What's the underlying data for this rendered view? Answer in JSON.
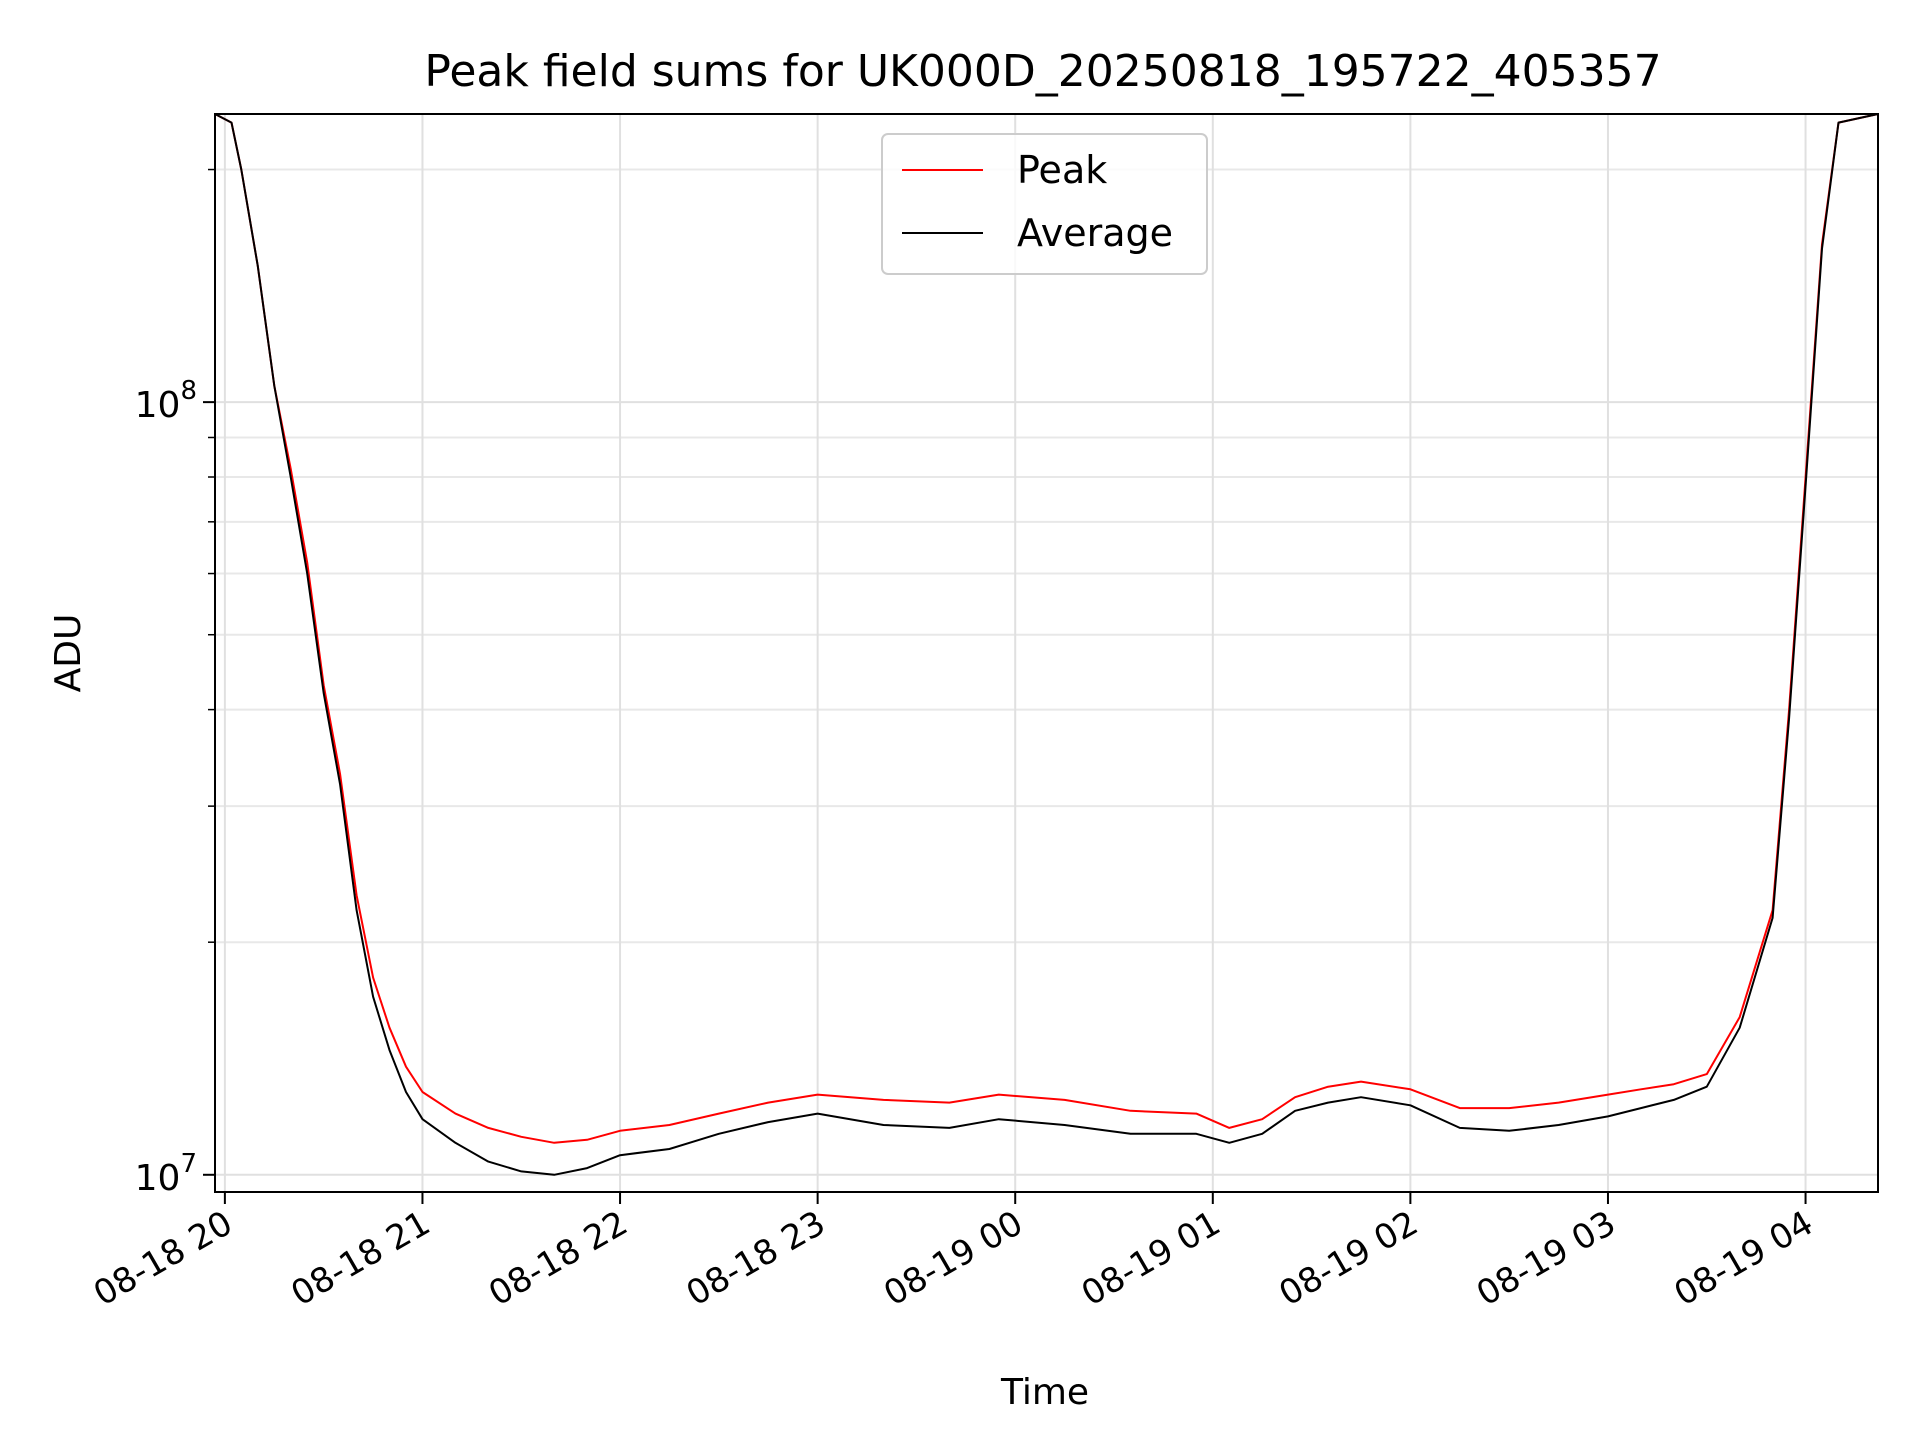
{
  "chart_data": {
    "type": "line",
    "title": "Peak field sums for UK000D_20250818_195722_405357",
    "xlabel": "Time",
    "ylabel": "ADU",
    "y_scale": "log",
    "ylim": [
      9500000,
      236000000
    ],
    "xlim": [
      "2025-08-18 19:57",
      "2025-08-19 04:22"
    ],
    "grid": true,
    "legend": {
      "placement": "top-center",
      "entries": [
        "Peak",
        "Average"
      ]
    },
    "x_ticks": [
      "08-18 20",
      "08-18 21",
      "08-18 22",
      "08-18 23",
      "08-19 00",
      "08-19 01",
      "08-19 02",
      "08-19 03",
      "08-19 04"
    ],
    "x_tick_times": [
      "2025-08-18 20:00",
      "2025-08-18 21:00",
      "2025-08-18 22:00",
      "2025-08-18 23:00",
      "2025-08-19 00:00",
      "2025-08-19 01:00",
      "2025-08-19 02:00",
      "2025-08-19 03:00",
      "2025-08-19 04:00"
    ],
    "y_ticks": [
      {
        "value": 10000000,
        "base": "10",
        "exp": "7"
      },
      {
        "value": 100000000,
        "base": "10",
        "exp": "8"
      }
    ],
    "series": [
      {
        "name": "Peak",
        "color": "#ff0000",
        "x": [
          "2025-08-18 19:57",
          "2025-08-18 20:02",
          "2025-08-18 20:05",
          "2025-08-18 20:10",
          "2025-08-18 20:15",
          "2025-08-18 20:20",
          "2025-08-18 20:25",
          "2025-08-18 20:30",
          "2025-08-18 20:35",
          "2025-08-18 20:40",
          "2025-08-18 20:45",
          "2025-08-18 20:50",
          "2025-08-18 20:55",
          "2025-08-18 21:00",
          "2025-08-18 21:10",
          "2025-08-18 21:20",
          "2025-08-18 21:30",
          "2025-08-18 21:40",
          "2025-08-18 21:50",
          "2025-08-18 22:00",
          "2025-08-18 22:15",
          "2025-08-18 22:30",
          "2025-08-18 22:45",
          "2025-08-18 23:00",
          "2025-08-18 23:20",
          "2025-08-18 23:40",
          "2025-08-18 23:55",
          "2025-08-19 00:15",
          "2025-08-19 00:35",
          "2025-08-19 00:55",
          "2025-08-19 01:05",
          "2025-08-19 01:15",
          "2025-08-19 01:25",
          "2025-08-19 01:35",
          "2025-08-19 01:45",
          "2025-08-19 02:00",
          "2025-08-19 02:15",
          "2025-08-19 02:30",
          "2025-08-19 02:45",
          "2025-08-19 03:00",
          "2025-08-19 03:10",
          "2025-08-19 03:20",
          "2025-08-19 03:30",
          "2025-08-19 03:40",
          "2025-08-19 03:50",
          "2025-08-19 03:55",
          "2025-08-19 04:00",
          "2025-08-19 04:05",
          "2025-08-19 04:10",
          "2025-08-19 04:22"
        ],
        "values": [
          236000000,
          230000000,
          200000000,
          150000000,
          105000000,
          82000000,
          62000000,
          43000000,
          33000000,
          23000000,
          18000000,
          15500000,
          13800000,
          12800000,
          12000000,
          11500000,
          11200000,
          11000000,
          11100000,
          11400000,
          11600000,
          12000000,
          12400000,
          12700000,
          12500000,
          12400000,
          12700000,
          12500000,
          12100000,
          12000000,
          11500000,
          11800000,
          12600000,
          13000000,
          13200000,
          12900000,
          12200000,
          12200000,
          12400000,
          12700000,
          12900000,
          13100000,
          13500000,
          16000000,
          22000000,
          40000000,
          80000000,
          160000000,
          230000000,
          236000000
        ]
      },
      {
        "name": "Average",
        "color": "#000000",
        "x": [
          "2025-08-18 19:57",
          "2025-08-18 20:02",
          "2025-08-18 20:05",
          "2025-08-18 20:10",
          "2025-08-18 20:15",
          "2025-08-18 20:20",
          "2025-08-18 20:25",
          "2025-08-18 20:30",
          "2025-08-18 20:35",
          "2025-08-18 20:40",
          "2025-08-18 20:45",
          "2025-08-18 20:50",
          "2025-08-18 20:55",
          "2025-08-18 21:00",
          "2025-08-18 21:10",
          "2025-08-18 21:20",
          "2025-08-18 21:30",
          "2025-08-18 21:40",
          "2025-08-18 21:50",
          "2025-08-18 22:00",
          "2025-08-18 22:15",
          "2025-08-18 22:30",
          "2025-08-18 22:45",
          "2025-08-18 23:00",
          "2025-08-18 23:20",
          "2025-08-18 23:40",
          "2025-08-18 23:55",
          "2025-08-19 00:15",
          "2025-08-19 00:35",
          "2025-08-19 00:55",
          "2025-08-19 01:05",
          "2025-08-19 01:15",
          "2025-08-19 01:25",
          "2025-08-19 01:35",
          "2025-08-19 01:45",
          "2025-08-19 02:00",
          "2025-08-19 02:15",
          "2025-08-19 02:30",
          "2025-08-19 02:45",
          "2025-08-19 03:00",
          "2025-08-19 03:10",
          "2025-08-19 03:20",
          "2025-08-19 03:30",
          "2025-08-19 03:40",
          "2025-08-19 03:50",
          "2025-08-19 03:55",
          "2025-08-19 04:00",
          "2025-08-19 04:05",
          "2025-08-19 04:10",
          "2025-08-19 04:22"
        ],
        "values": [
          236000000,
          230000000,
          200000000,
          150000000,
          105000000,
          80000000,
          60000000,
          42000000,
          32000000,
          22000000,
          17000000,
          14500000,
          12800000,
          11800000,
          11000000,
          10400000,
          10100000,
          10000000,
          10200000,
          10600000,
          10800000,
          11300000,
          11700000,
          12000000,
          11600000,
          11500000,
          11800000,
          11600000,
          11300000,
          11300000,
          11000000,
          11300000,
          12100000,
          12400000,
          12600000,
          12300000,
          11500000,
          11400000,
          11600000,
          11900000,
          12200000,
          12500000,
          13000000,
          15500000,
          21500000,
          39000000,
          78000000,
          158000000,
          230000000,
          236000000
        ]
      }
    ]
  }
}
